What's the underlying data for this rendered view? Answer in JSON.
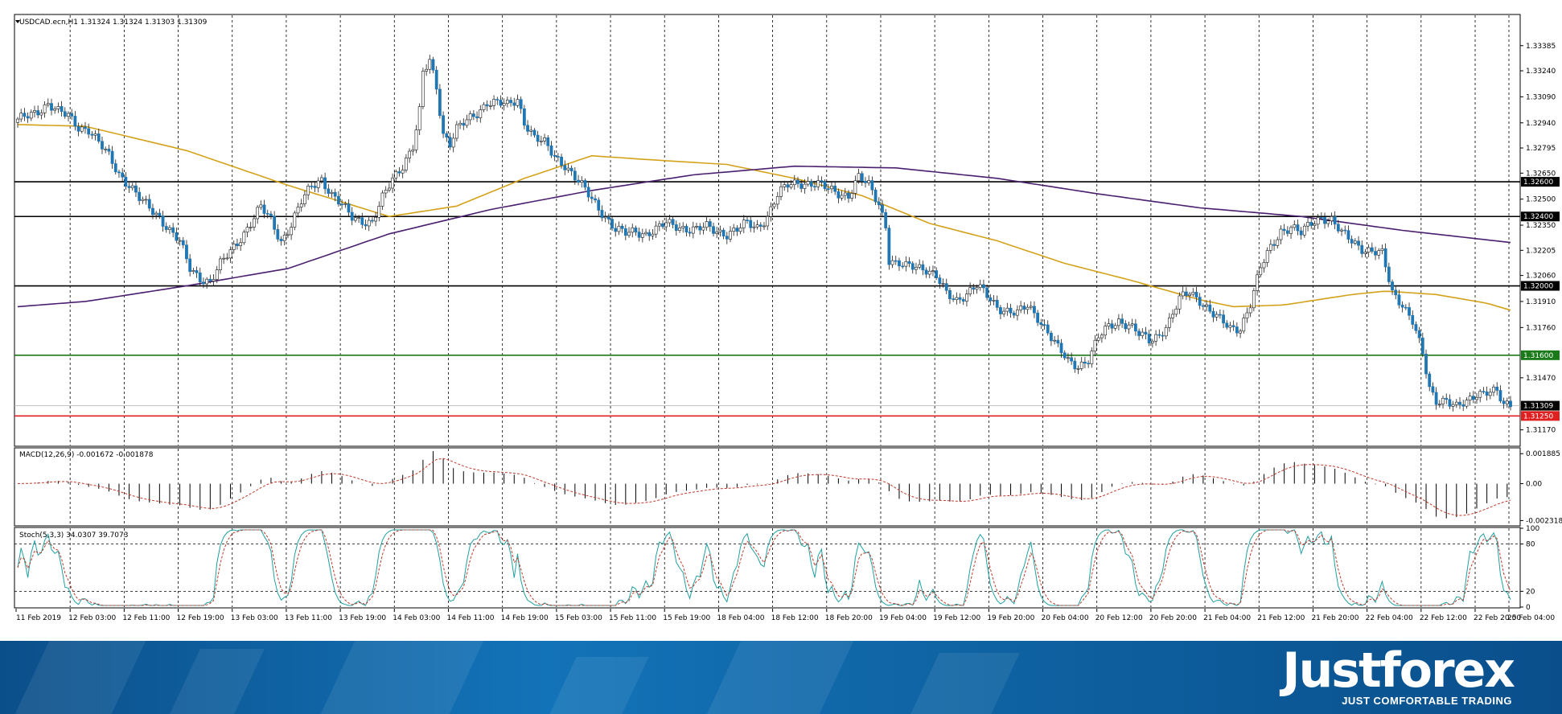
{
  "chart_data": [
    {
      "type": "candlestick",
      "title": "USDCAD.ecn,H1  1.31324 1.31324 1.31303 1.31309",
      "price_axis_ticks": [
        "1.33385",
        "1.33240",
        "1.33090",
        "1.32940",
        "1.32795",
        "1.32650",
        "1.32500",
        "1.32350",
        "1.32205",
        "1.32060",
        "1.31910",
        "1.31760",
        "1.31470",
        "1.31170"
      ],
      "ylim": [
        1.3108,
        1.3356
      ],
      "level_labels": [
        {
          "value": 1.326,
          "text": "1.32600",
          "color": "#000000"
        },
        {
          "value": 1.324,
          "text": "1.32400",
          "color": "#000000"
        },
        {
          "value": 1.32,
          "text": "1.32000",
          "color": "#000000"
        },
        {
          "value": 1.316,
          "text": "1.31600",
          "color": "#1a7a1a"
        },
        {
          "value": 1.3125,
          "text": "1.31250",
          "color": "#e02020"
        },
        {
          "value": 1.31309,
          "text": "1.31309",
          "color": "#000000"
        }
      ],
      "time_labels": [
        "11 Feb 2019",
        "12 Feb 03:00",
        "12 Feb 11:00",
        "12 Feb 19:00",
        "13 Feb 03:00",
        "13 Feb 11:00",
        "13 Feb 19:00",
        "14 Feb 03:00",
        "14 Feb 11:00",
        "14 Feb 19:00",
        "15 Feb 03:00",
        "15 Feb 11:00",
        "15 Feb 19:00",
        "18 Feb 04:00",
        "18 Feb 12:00",
        "18 Feb 20:00",
        "19 Feb 04:00",
        "19 Feb 12:00",
        "19 Feb 20:00",
        "20 Feb 04:00",
        "20 Feb 12:00",
        "20 Feb 20:00",
        "21 Feb 04:00",
        "21 Feb 12:00",
        "21 Feb 20:00",
        "22 Feb 04:00",
        "22 Feb 12:00",
        "22 Feb 20:00",
        "25 Feb 04:00"
      ],
      "close_path": [
        [
          0,
          1.3295
        ],
        [
          5,
          1.33
        ],
        [
          9,
          1.3305
        ],
        [
          12,
          1.33
        ],
        [
          15,
          1.3298
        ],
        [
          18,
          1.3292
        ],
        [
          21,
          1.329
        ],
        [
          24,
          1.3282
        ],
        [
          27,
          1.3275
        ],
        [
          30,
          1.3265
        ],
        [
          33,
          1.3258
        ],
        [
          36,
          1.325
        ],
        [
          39,
          1.3245
        ],
        [
          42,
          1.324
        ],
        [
          45,
          1.3232
        ],
        [
          48,
          1.3225
        ],
        [
          51,
          1.321
        ],
        [
          54,
          1.3205
        ],
        [
          57,
          1.3202
        ],
        [
          60,
          1.3212
        ],
        [
          63,
          1.322
        ],
        [
          66,
          1.3228
        ],
        [
          69,
          1.3236
        ],
        [
          72,
          1.3245
        ],
        [
          75,
          1.3238
        ],
        [
          78,
          1.3226
        ],
        [
          81,
          1.3235
        ],
        [
          84,
          1.3248
        ],
        [
          87,
          1.3258
        ],
        [
          90,
          1.3262
        ],
        [
          93,
          1.3252
        ],
        [
          96,
          1.3246
        ],
        [
          99,
          1.324
        ],
        [
          102,
          1.3238
        ],
        [
          105,
          1.3236
        ],
        [
          108,
          1.325
        ],
        [
          111,
          1.3262
        ],
        [
          114,
          1.327
        ],
        [
          117,
          1.328
        ],
        [
          119,
          1.33
        ],
        [
          120,
          1.3322
        ],
        [
          122,
          1.333
        ],
        [
          124,
          1.3315
        ],
        [
          126,
          1.3288
        ],
        [
          128,
          1.3282
        ],
        [
          130,
          1.329
        ],
        [
          133,
          1.3295
        ],
        [
          136,
          1.33
        ],
        [
          139,
          1.3306
        ],
        [
          142,
          1.3305
        ],
        [
          145,
          1.3304
        ],
        [
          148,
          1.3308
        ],
        [
          150,
          1.3295
        ],
        [
          153,
          1.3285
        ],
        [
          156,
          1.3282
        ],
        [
          159,
          1.3275
        ],
        [
          162,
          1.327
        ],
        [
          165,
          1.3262
        ],
        [
          168,
          1.3255
        ],
        [
          171,
          1.3248
        ],
        [
          174,
          1.324
        ],
        [
          177,
          1.3232
        ],
        [
          180,
          1.323
        ],
        [
          183,
          1.3232
        ],
        [
          186,
          1.323
        ],
        [
          189,
          1.3232
        ],
        [
          192,
          1.3236
        ],
        [
          195,
          1.3235
        ],
        [
          198,
          1.3233
        ],
        [
          201,
          1.3232
        ],
        [
          204,
          1.3234
        ],
        [
          207,
          1.3232
        ],
        [
          210,
          1.323
        ],
        [
          213,
          1.3232
        ],
        [
          216,
          1.3236
        ],
        [
          219,
          1.3234
        ],
        [
          222,
          1.324
        ],
        [
          225,
          1.3252
        ],
        [
          228,
          1.3258
        ],
        [
          231,
          1.326
        ],
        [
          234,
          1.3259
        ],
        [
          237,
          1.3258
        ],
        [
          240,
          1.3256
        ],
        [
          243,
          1.3254
        ],
        [
          246,
          1.3252
        ],
        [
          249,
          1.3262
        ],
        [
          252,
          1.3258
        ],
        [
          255,
          1.3248
        ],
        [
          257,
          1.3235
        ],
        [
          258,
          1.3215
        ],
        [
          260,
          1.3212
        ],
        [
          263,
          1.3211
        ],
        [
          266,
          1.3212
        ],
        [
          269,
          1.321
        ],
        [
          272,
          1.3205
        ],
        [
          275,
          1.3195
        ],
        [
          278,
          1.3192
        ],
        [
          281,
          1.3196
        ],
        [
          284,
          1.32
        ],
        [
          287,
          1.3194
        ],
        [
          290,
          1.3188
        ],
        [
          293,
          1.3186
        ],
        [
          296,
          1.3184
        ],
        [
          299,
          1.3188
        ],
        [
          302,
          1.3182
        ],
        [
          305,
          1.3174
        ],
        [
          308,
          1.3164
        ],
        [
          311,
          1.3156
        ],
        [
          314,
          1.3154
        ],
        [
          317,
          1.3158
        ],
        [
          320,
          1.317
        ],
        [
          323,
          1.3176
        ],
        [
          326,
          1.318
        ],
        [
          329,
          1.3178
        ],
        [
          332,
          1.3172
        ],
        [
          335,
          1.3168
        ],
        [
          338,
          1.3172
        ],
        [
          341,
          1.318
        ],
        [
          344,
          1.3192
        ],
        [
          347,
          1.3196
        ],
        [
          350,
          1.3192
        ],
        [
          353,
          1.3186
        ],
        [
          356,
          1.318
        ],
        [
          359,
          1.3175
        ],
        [
          362,
          1.3176
        ],
        [
          365,
          1.319
        ],
        [
          368,
          1.321
        ],
        [
          371,
          1.3222
        ],
        [
          374,
          1.3232
        ],
        [
          377,
          1.3234
        ],
        [
          380,
          1.323
        ],
        [
          383,
          1.3236
        ],
        [
          386,
          1.324
        ],
        [
          389,
          1.3238
        ],
        [
          392,
          1.323
        ],
        [
          395,
          1.3226
        ],
        [
          398,
          1.3222
        ],
        [
          401,
          1.322
        ],
        [
          404,
          1.3218
        ],
        [
          407,
          1.3196
        ],
        [
          410,
          1.319
        ],
        [
          413,
          1.318
        ],
        [
          416,
          1.316
        ],
        [
          418,
          1.314
        ],
        [
          420,
          1.3134
        ],
        [
          423,
          1.3135
        ],
        [
          426,
          1.313
        ],
        [
          429,
          1.3132
        ],
        [
          432,
          1.3138
        ],
        [
          435,
          1.314
        ],
        [
          438,
          1.3139
        ],
        [
          440,
          1.313
        ],
        [
          442,
          1.3131
        ]
      ],
      "moving_averages": [
        {
          "color": "#d4a21a",
          "points": [
            [
              0,
              1.3293
            ],
            [
              20,
              1.3292
            ],
            [
              50,
              1.3278
            ],
            [
              80,
              1.3258
            ],
            [
              110,
              1.324
            ],
            [
              130,
              1.3246
            ],
            [
              150,
              1.3262
            ],
            [
              170,
              1.3275
            ],
            [
              185,
              1.3273
            ],
            [
              210,
              1.327
            ],
            [
              230,
              1.3262
            ],
            [
              250,
              1.3252
            ],
            [
              270,
              1.3236
            ],
            [
              290,
              1.3226
            ],
            [
              310,
              1.3213
            ],
            [
              330,
              1.3203
            ],
            [
              350,
              1.3192
            ],
            [
              360,
              1.3188
            ],
            [
              375,
              1.3189
            ],
            [
              395,
              1.3195
            ],
            [
              405,
              1.3197
            ],
            [
              420,
              1.3195
            ],
            [
              435,
              1.319
            ],
            [
              442,
              1.3186
            ]
          ]
        },
        {
          "color": "#4b1f6f",
          "points": [
            [
              0,
              1.3188
            ],
            [
              20,
              1.3191
            ],
            [
              50,
              1.32
            ],
            [
              80,
              1.321
            ],
            [
              110,
              1.323
            ],
            [
              140,
              1.3244
            ],
            [
              170,
              1.3255
            ],
            [
              200,
              1.3264
            ],
            [
              230,
              1.3269
            ],
            [
              260,
              1.3268
            ],
            [
              290,
              1.3262
            ],
            [
              320,
              1.3253
            ],
            [
              350,
              1.3245
            ],
            [
              380,
              1.324
            ],
            [
              410,
              1.3232
            ],
            [
              442,
              1.3225
            ]
          ]
        }
      ]
    },
    {
      "type": "histogram",
      "title": "MACD(12,26,9) -0.001672 -0.001878",
      "ticks": [
        "0.001885",
        "0.00",
        "-0.002318"
      ],
      "ylim": [
        -0.0026,
        0.0022
      ]
    },
    {
      "type": "line",
      "title": "Stoch(5,3,3) 34.0307 39.7073",
      "ticks": [
        "100",
        "80",
        "20",
        "0"
      ],
      "ylim": [
        0,
        100
      ]
    }
  ],
  "branding": {
    "logo_text": "Justforex",
    "slogan": "JUST COMFORTABLE TRADING"
  }
}
